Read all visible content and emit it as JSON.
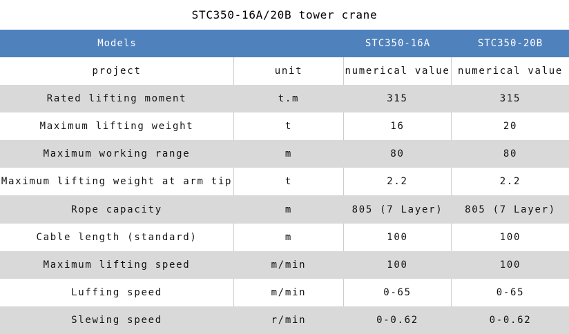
{
  "title": "STC350-16A/20B tower crane",
  "colors": {
    "header_bg": "#4f81bd",
    "row_alt_bg": "#d9d9d9",
    "divider": "#c9ced4",
    "header_text": "#ffffff",
    "body_text": "#121212"
  },
  "table": {
    "header": {
      "models_label": "Models",
      "model_16a": "STC350-16A",
      "model_20b": "STC350-20B"
    },
    "subheader": {
      "project": "project",
      "unit": "unit",
      "value_16a": "numerical value",
      "value_20b": "numerical value"
    },
    "rows": [
      {
        "project": "Rated lifting moment",
        "unit": "t.m",
        "v16a": "315",
        "v20b": "315"
      },
      {
        "project": "Maximum lifting weight",
        "unit": "t",
        "v16a": "16",
        "v20b": "20"
      },
      {
        "project": "Maximum working range",
        "unit": "m",
        "v16a": "80",
        "v20b": "80"
      },
      {
        "project": "Maximum lifting weight at arm tip",
        "unit": "t",
        "v16a": "2.2",
        "v20b": "2.2"
      },
      {
        "project": "Rope capacity",
        "unit": "m",
        "v16a": "805 (7 Layer)",
        "v20b": "805 (7 Layer)"
      },
      {
        "project": "Cable length (standard)",
        "unit": "m",
        "v16a": "100",
        "v20b": "100"
      },
      {
        "project": "Maximum lifting speed",
        "unit": "m/min",
        "v16a": "100",
        "v20b": "100"
      },
      {
        "project": "Luffing speed",
        "unit": "m/min",
        "v16a": "0-65",
        "v20b": "0-65"
      },
      {
        "project": "Slewing speed",
        "unit": "r/min",
        "v16a": "0-0.62",
        "v20b": "0-0.62"
      }
    ]
  }
}
